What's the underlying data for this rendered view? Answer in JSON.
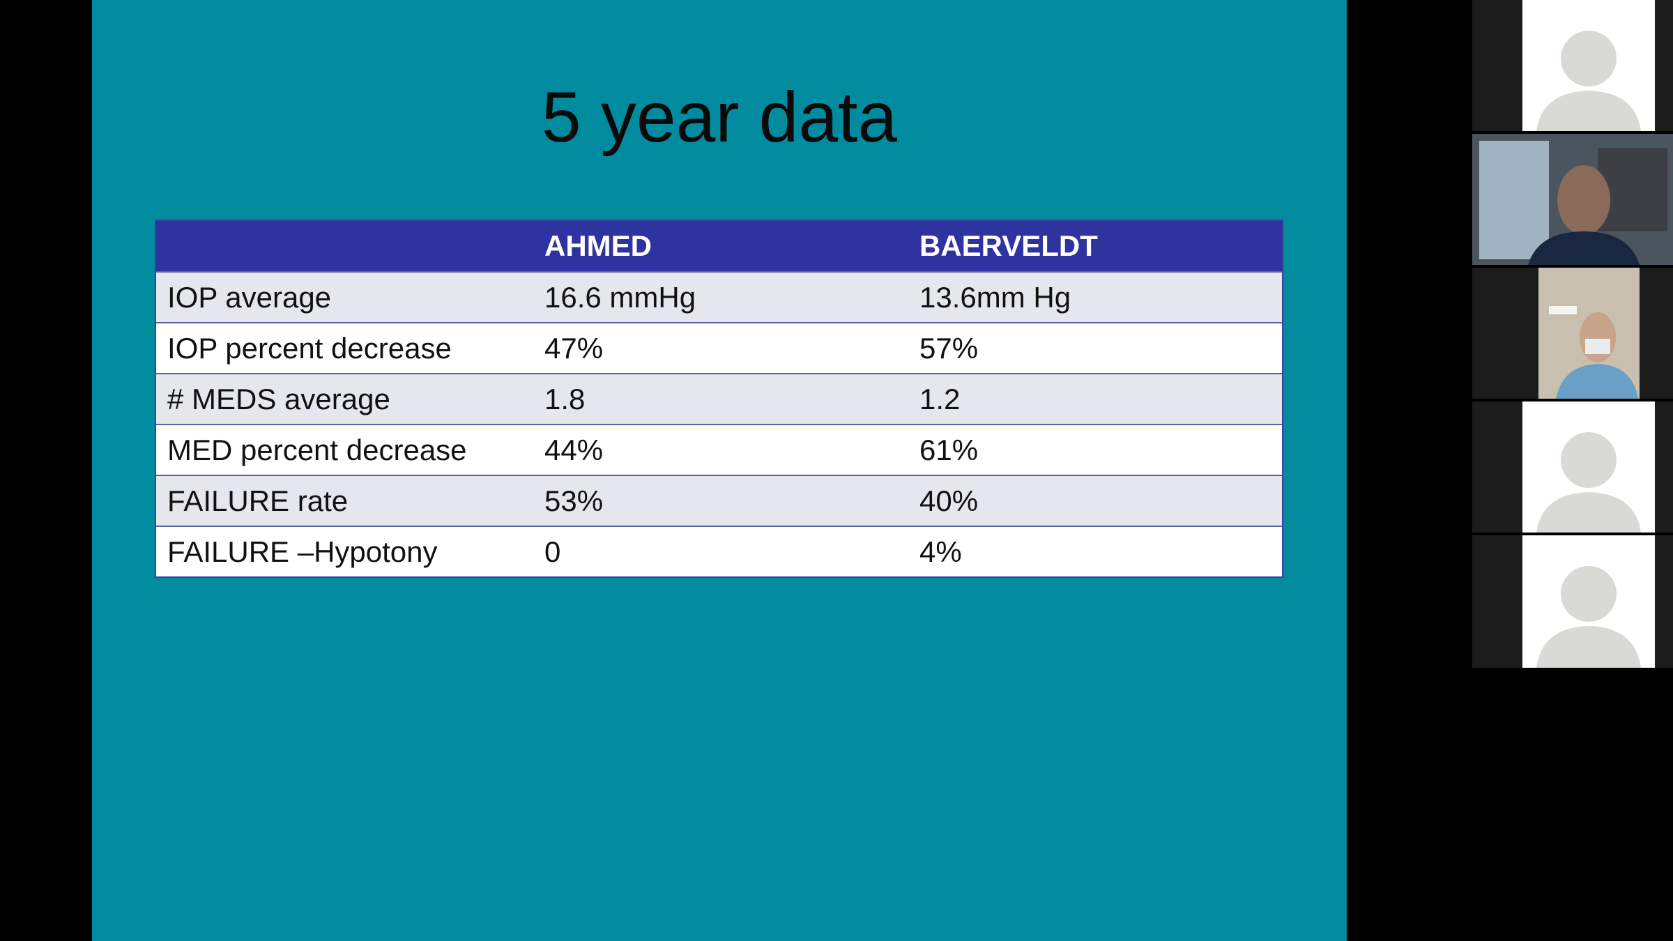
{
  "slide": {
    "title": "5 year data",
    "table": {
      "header": [
        "AHMED",
        "BAERVELDT"
      ],
      "rows": [
        [
          "IOP average",
          "16.6 mmHg",
          "13.6mm Hg"
        ],
        [
          "IOP percent decrease",
          "47%",
          "57%"
        ],
        [
          "# MEDS average",
          "1.8",
          "1.2"
        ],
        [
          "MED percent decrease",
          "44%",
          "61%"
        ],
        [
          "FAILURE rate",
          "53%",
          "40%"
        ],
        [
          "FAILURE –Hypotony",
          "0",
          "4%"
        ]
      ]
    }
  }
}
